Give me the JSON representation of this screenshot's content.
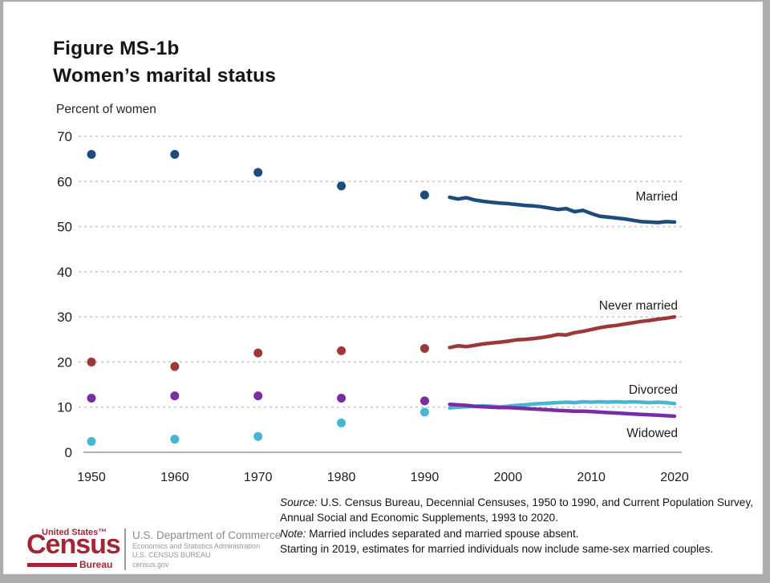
{
  "title": {
    "line1": "Figure MS-1b",
    "line2": "Women’s marital status"
  },
  "chart_data": {
    "type": "scatter+line",
    "title": "Women’s marital status",
    "ylabel": "Percent of women",
    "xlabel": "",
    "ylim": [
      0,
      70
    ],
    "yticks": [
      0,
      10,
      20,
      30,
      40,
      50,
      60,
      70
    ],
    "xticks": [
      1950,
      1960,
      1970,
      1980,
      1990,
      2000,
      2010,
      2020
    ],
    "grid": "horizontal dashed gridlines",
    "legend_position": "direct labels at right of lines",
    "census_years": [
      1950,
      1960,
      1970,
      1980,
      1990
    ],
    "cps_years": [
      1993,
      1994,
      1995,
      1996,
      1997,
      1998,
      1999,
      2000,
      2001,
      2002,
      2003,
      2004,
      2005,
      2006,
      2007,
      2008,
      2009,
      2010,
      2011,
      2012,
      2013,
      2014,
      2015,
      2016,
      2017,
      2018,
      2019,
      2020
    ],
    "series": [
      {
        "name": "Married",
        "color": "#1d4c7c",
        "census_values": [
          66,
          66,
          62,
          59,
          57
        ],
        "cps_values": [
          56.5,
          56.1,
          56.4,
          55.9,
          55.6,
          55.4,
          55.2,
          55.1,
          54.9,
          54.7,
          54.6,
          54.4,
          54.1,
          53.8,
          54.0,
          53.3,
          53.6,
          52.9,
          52.3,
          52.1,
          51.9,
          51.7,
          51.4,
          51.1,
          51.0,
          50.9,
          51.1,
          51.0
        ]
      },
      {
        "name": "Never married",
        "color": "#9c3837",
        "census_values": [
          20,
          19,
          22,
          22.5,
          23
        ],
        "cps_values": [
          23.2,
          23.6,
          23.4,
          23.7,
          24.0,
          24.2,
          24.4,
          24.6,
          24.9,
          25.0,
          25.2,
          25.4,
          25.7,
          26.1,
          26.0,
          26.5,
          26.8,
          27.2,
          27.6,
          27.9,
          28.1,
          28.4,
          28.7,
          29.0,
          29.2,
          29.5,
          29.7,
          30.0
        ]
      },
      {
        "name": "Divorced",
        "color": "#46b6d3",
        "census_values": [
          2.4,
          2.9,
          3.5,
          6.5,
          8.9
        ],
        "cps_values": [
          9.8,
          10.0,
          10.1,
          10.2,
          10.3,
          10.2,
          10.1,
          10.2,
          10.4,
          10.5,
          10.7,
          10.8,
          10.9,
          11.0,
          11.1,
          11.0,
          11.2,
          11.1,
          11.2,
          11.1,
          11.2,
          11.1,
          11.2,
          11.1,
          11.0,
          11.1,
          11.0,
          10.8
        ]
      },
      {
        "name": "Widowed",
        "color": "#7a2ca5",
        "census_values": [
          12,
          12.5,
          12.5,
          12,
          11.4
        ],
        "cps_values": [
          10.6,
          10.5,
          10.4,
          10.2,
          10.1,
          10.0,
          9.9,
          9.9,
          9.8,
          9.7,
          9.6,
          9.5,
          9.4,
          9.3,
          9.2,
          9.1,
          9.1,
          9.0,
          8.9,
          8.8,
          8.7,
          8.6,
          8.5,
          8.4,
          8.3,
          8.2,
          8.1,
          8.0
        ]
      }
    ]
  },
  "notes": {
    "source_label": "Source:",
    "source_text": "U.S. Census Bureau, Decennial Censuses, 1950 to 1990, and Current Population Survey, Annual Social and Economic Supplements, 1993 to 2020.",
    "note_label": "Note:",
    "note_text": "Married includes separated and married spouse absent.",
    "note_text2": "Starting in 2019, estimates for married individuals now include same-sex married couples."
  },
  "logo": {
    "brand_color": "#a32638",
    "united_states": "United States™",
    "census": "Census",
    "bureau": "Bureau",
    "dept": "U.S. Department of Commerce",
    "esa": "Economics and Statistics Administration",
    "bureau_caps": "U.S. CENSUS BUREAU",
    "site": "census.gov"
  }
}
